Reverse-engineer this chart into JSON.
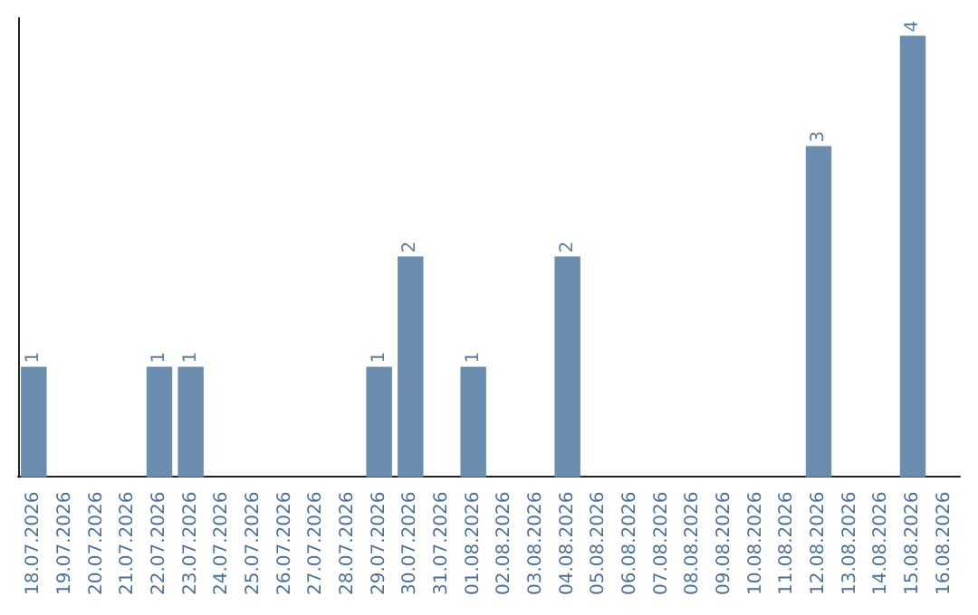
{
  "chart_data": {
    "type": "bar",
    "categories": [
      "18.07.2026",
      "19.07.2026",
      "20.07.2026",
      "21.07.2026",
      "22.07.2026",
      "23.07.2026",
      "24.07.2026",
      "25.07.2026",
      "26.07.2026",
      "27.07.2026",
      "28.07.2026",
      "29.07.2026",
      "30.07.2026",
      "31.07.2026",
      "01.08.2026",
      "02.08.2026",
      "03.08.2026",
      "04.08.2026",
      "05.08.2026",
      "06.08.2026",
      "07.08.2026",
      "08.08.2026",
      "09.08.2026",
      "10.08.2026",
      "11.08.2026",
      "12.08.2026",
      "13.08.2026",
      "14.08.2026",
      "15.08.2026",
      "16.08.2026"
    ],
    "values": [
      1,
      0,
      0,
      0,
      1,
      1,
      0,
      0,
      0,
      0,
      0,
      1,
      2,
      0,
      1,
      0,
      0,
      2,
      0,
      0,
      0,
      0,
      0,
      0,
      0,
      3,
      0,
      0,
      4,
      0
    ],
    "value_labels": [
      "1",
      null,
      null,
      null,
      "1",
      "1",
      null,
      null,
      null,
      null,
      null,
      "1",
      "2",
      null,
      "1",
      null,
      null,
      "2",
      null,
      null,
      null,
      null,
      null,
      null,
      null,
      "3",
      null,
      null,
      "4",
      null
    ],
    "color": "#6a8caf",
    "grid": false,
    "tick_labels": "x"
  }
}
